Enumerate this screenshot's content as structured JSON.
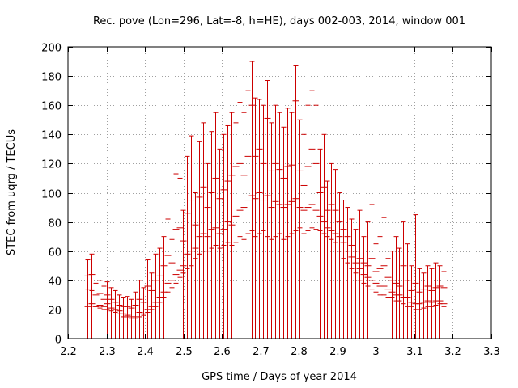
{
  "chart_data": {
    "type": "errorbar",
    "title": "Rec. pove (Lon=296, Lat=-8, h=HE), days 002-003, 2014, window 001",
    "xlabel": "GPS time / Days of year 2014",
    "ylabel": "STEC from uqrg / TECUs",
    "xlim": [
      2.2,
      3.3
    ],
    "ylim": [
      0,
      200
    ],
    "xticks": [
      "2.2",
      "2.3",
      "2.4",
      "2.5",
      "2.6",
      "2.7",
      "2.8",
      "2.9",
      "3",
      "3.1",
      "3.2",
      "3.3"
    ],
    "xtick_values": [
      2.2,
      2.3,
      2.4,
      2.5,
      2.6,
      2.7,
      2.8,
      2.9,
      3.0,
      3.1,
      3.2,
      3.3
    ],
    "yticks": [
      "0",
      "20",
      "40",
      "60",
      "80",
      "100",
      "120",
      "140",
      "160",
      "180",
      "200"
    ],
    "ytick_values": [
      0,
      20,
      40,
      60,
      80,
      100,
      120,
      140,
      160,
      180,
      200
    ],
    "grid": true,
    "series_color": "#cc0000",
    "x_start": 2.25,
    "x_step": 0.0104,
    "points": [
      {
        "lo": 34,
        "hi": 54,
        "marks": [
          43,
          22
        ]
      },
      {
        "lo": 33,
        "hi": 58,
        "marks": [
          44,
          24
        ]
      },
      {
        "lo": 22,
        "hi": 38,
        "marks": [
          30,
          22
        ]
      },
      {
        "lo": 21,
        "hi": 40,
        "marks": [
          31,
          23
        ]
      },
      {
        "lo": 20,
        "hi": 36,
        "marks": [
          27,
          22
        ]
      },
      {
        "lo": 20,
        "hi": 39,
        "marks": [
          30,
          24
        ]
      },
      {
        "lo": 19,
        "hi": 35,
        "marks": [
          27,
          21
        ]
      },
      {
        "lo": 18,
        "hi": 33,
        "marks": [
          25,
          20
        ]
      },
      {
        "lo": 17,
        "hi": 30,
        "marks": [
          23,
          19
        ]
      },
      {
        "lo": 15,
        "hi": 28,
        "marks": [
          22,
          17
        ]
      },
      {
        "lo": 15,
        "hi": 29,
        "marks": [
          22,
          16
        ]
      },
      {
        "lo": 14,
        "hi": 27,
        "marks": [
          21,
          15
        ]
      },
      {
        "lo": 14,
        "hi": 32,
        "marks": [
          23,
          15
        ]
      },
      {
        "lo": 15,
        "hi": 40,
        "marks": [
          27,
          18
        ]
      },
      {
        "lo": 16,
        "hi": 35,
        "marks": [
          25,
          17
        ]
      },
      {
        "lo": 18,
        "hi": 54,
        "marks": [
          36,
          20
        ]
      },
      {
        "lo": 20,
        "hi": 45,
        "marks": [
          33,
          22
        ]
      },
      {
        "lo": 22,
        "hi": 58,
        "marks": [
          40,
          25
        ]
      },
      {
        "lo": 25,
        "hi": 62,
        "marks": [
          43,
          28
        ]
      },
      {
        "lo": 28,
        "hi": 70,
        "marks": [
          50,
          32
        ]
      },
      {
        "lo": 32,
        "hi": 82,
        "marks": [
          57,
          38
        ]
      },
      {
        "lo": 35,
        "hi": 68,
        "marks": [
          52,
          40
        ]
      },
      {
        "lo": 38,
        "hi": 113,
        "marks": [
          75,
          44
        ]
      },
      {
        "lo": 42,
        "hi": 110,
        "marks": [
          76,
          47
        ]
      },
      {
        "lo": 45,
        "hi": 88,
        "marks": [
          67,
          50
        ]
      },
      {
        "lo": 48,
        "hi": 125,
        "marks": [
          86,
          58
        ]
      },
      {
        "lo": 50,
        "hi": 139,
        "marks": [
          95,
          60
        ]
      },
      {
        "lo": 55,
        "hi": 100,
        "marks": [
          78,
          62
        ]
      },
      {
        "lo": 58,
        "hi": 135,
        "marks": [
          97,
          70
        ]
      },
      {
        "lo": 60,
        "hi": 148,
        "marks": [
          104,
          72
        ]
      },
      {
        "lo": 60,
        "hi": 120,
        "marks": [
          90,
          70
        ]
      },
      {
        "lo": 62,
        "hi": 142,
        "marks": [
          100,
          75
        ]
      },
      {
        "lo": 64,
        "hi": 155,
        "marks": [
          110,
          76
        ]
      },
      {
        "lo": 62,
        "hi": 130,
        "marks": [
          96,
          72
        ]
      },
      {
        "lo": 64,
        "hi": 140,
        "marks": [
          102,
          75
        ]
      },
      {
        "lo": 66,
        "hi": 146,
        "marks": [
          108,
          80
        ]
      },
      {
        "lo": 64,
        "hi": 155,
        "marks": [
          112,
          78
        ]
      },
      {
        "lo": 66,
        "hi": 148,
        "marks": [
          118,
          84
        ]
      },
      {
        "lo": 70,
        "hi": 162,
        "marks": [
          120,
          88
        ]
      },
      {
        "lo": 68,
        "hi": 155,
        "marks": [
          112,
          90
        ]
      },
      {
        "lo": 72,
        "hi": 170,
        "marks": [
          125,
          95
        ]
      },
      {
        "lo": 74,
        "hi": 190,
        "marks": [
          160,
          98
        ]
      },
      {
        "lo": 70,
        "hi": 165,
        "marks": [
          125,
          96
        ]
      },
      {
        "lo": 72,
        "hi": 164,
        "marks": [
          130,
          100
        ]
      },
      {
        "lo": 74,
        "hi": 160,
        "marks": [
          120,
          95
        ]
      },
      {
        "lo": 70,
        "hi": 177,
        "marks": [
          151,
          98
        ]
      },
      {
        "lo": 68,
        "hi": 148,
        "marks": [
          115,
          90
        ]
      },
      {
        "lo": 70,
        "hi": 160,
        "marks": [
          120,
          94
        ]
      },
      {
        "lo": 72,
        "hi": 155,
        "marks": [
          116,
          92
        ]
      },
      {
        "lo": 68,
        "hi": 145,
        "marks": [
          110,
          90
        ]
      },
      {
        "lo": 70,
        "hi": 158,
        "marks": [
          118,
          92
        ]
      },
      {
        "lo": 72,
        "hi": 155,
        "marks": [
          119,
          94
        ]
      },
      {
        "lo": 74,
        "hi": 187,
        "marks": [
          163,
          96
        ]
      },
      {
        "lo": 76,
        "hi": 150,
        "marks": [
          115,
          90
        ]
      },
      {
        "lo": 72,
        "hi": 140,
        "marks": [
          105,
          88
        ]
      },
      {
        "lo": 74,
        "hi": 160,
        "marks": [
          118,
          90
        ]
      },
      {
        "lo": 76,
        "hi": 170,
        "marks": [
          130,
          92
        ]
      },
      {
        "lo": 75,
        "hi": 160,
        "marks": [
          120,
          88
        ]
      },
      {
        "lo": 74,
        "hi": 130,
        "marks": [
          100,
          84
        ]
      },
      {
        "lo": 72,
        "hi": 140,
        "marks": [
          104,
          80
        ]
      },
      {
        "lo": 70,
        "hi": 108,
        "marks": [
          88,
          76
        ]
      },
      {
        "lo": 68,
        "hi": 120,
        "marks": [
          92,
          74
        ]
      },
      {
        "lo": 66,
        "hi": 116,
        "marks": [
          88,
          72
        ]
      },
      {
        "lo": 60,
        "hi": 100,
        "marks": [
          80,
          70
        ]
      },
      {
        "lo": 55,
        "hi": 95,
        "marks": [
          75,
          66
        ]
      },
      {
        "lo": 52,
        "hi": 90,
        "marks": [
          70,
          60
        ]
      },
      {
        "lo": 48,
        "hi": 82,
        "marks": [
          64,
          56
        ]
      },
      {
        "lo": 45,
        "hi": 75,
        "marks": [
          60,
          52
        ]
      },
      {
        "lo": 40,
        "hi": 88,
        "marks": [
          55,
          48
        ]
      },
      {
        "lo": 38,
        "hi": 70,
        "marks": [
          52,
          44
        ]
      },
      {
        "lo": 36,
        "hi": 80,
        "marks": [
          50,
          42
        ]
      },
      {
        "lo": 34,
        "hi": 92,
        "marks": [
          55,
          40
        ]
      },
      {
        "lo": 32,
        "hi": 65,
        "marks": [
          46,
          38
        ]
      },
      {
        "lo": 30,
        "hi": 70,
        "marks": [
          48,
          36
        ]
      },
      {
        "lo": 30,
        "hi": 83,
        "marks": [
          50,
          36
        ]
      },
      {
        "lo": 28,
        "hi": 55,
        "marks": [
          42,
          34
        ]
      },
      {
        "lo": 28,
        "hi": 60,
        "marks": [
          40,
          32
        ]
      },
      {
        "lo": 26,
        "hi": 70,
        "marks": [
          38,
          30
        ]
      },
      {
        "lo": 26,
        "hi": 62,
        "marks": [
          36,
          30
        ]
      },
      {
        "lo": 24,
        "hi": 80,
        "marks": [
          50,
          28
        ]
      },
      {
        "lo": 22,
        "hi": 65,
        "marks": [
          40,
          28
        ]
      },
      {
        "lo": 22,
        "hi": 50,
        "marks": [
          33,
          25
        ]
      },
      {
        "lo": 20,
        "hi": 85,
        "marks": [
          38,
          24
        ]
      },
      {
        "lo": 20,
        "hi": 48,
        "marks": [
          32,
          24
        ]
      },
      {
        "lo": 21,
        "hi": 45,
        "marks": [
          34,
          25
        ]
      },
      {
        "lo": 22,
        "hi": 50,
        "marks": [
          36,
          26
        ]
      },
      {
        "lo": 22,
        "hi": 48,
        "marks": [
          33,
          25
        ]
      },
      {
        "lo": 23,
        "hi": 52,
        "marks": [
          35,
          26
        ]
      },
      {
        "lo": 24,
        "hi": 50,
        "marks": [
          36,
          26
        ]
      },
      {
        "lo": 22,
        "hi": 46,
        "marks": [
          35,
          24
        ]
      }
    ]
  }
}
